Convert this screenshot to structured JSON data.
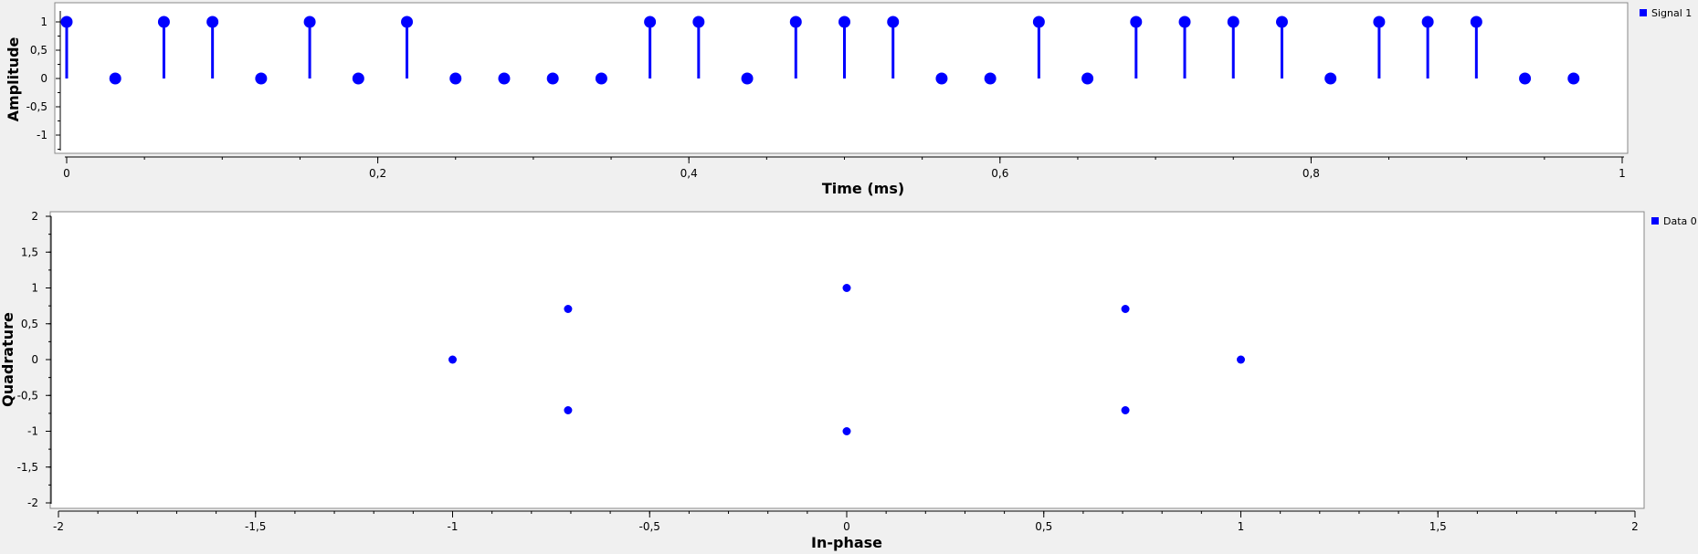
{
  "colors": {
    "series": "#0000ff",
    "background": "#f0f0f0",
    "canvas": "#ffffff",
    "axis": "#000000"
  },
  "chart_data": [
    {
      "type": "stem",
      "title": "",
      "xlabel": "Time (ms)",
      "ylabel": "Amplitude",
      "xlim": [
        0,
        1
      ],
      "ylim": [
        -1.25,
        1.25
      ],
      "xticks": [
        "0",
        "0,2",
        "0,4",
        "0,6",
        "0,8",
        "1"
      ],
      "yticks": [
        "1",
        "0,5",
        "0",
        "-0,5",
        "-1"
      ],
      "legend_position": "top-right",
      "grid": false,
      "series": [
        {
          "name": "Signal 1",
          "x": [
            0,
            0.03125,
            0.0625,
            0.09375,
            0.125,
            0.15625,
            0.1875,
            0.21875,
            0.25,
            0.28125,
            0.3125,
            0.34375,
            0.375,
            0.40625,
            0.4375,
            0.46875,
            0.5,
            0.53125,
            0.5625,
            0.59375,
            0.625,
            0.65625,
            0.6875,
            0.71875,
            0.75,
            0.78125,
            0.8125,
            0.84375,
            0.875,
            0.90625,
            0.9375,
            0.96875
          ],
          "values": [
            1,
            0,
            1,
            1,
            0,
            1,
            0,
            1,
            0,
            0,
            0,
            0,
            1,
            1,
            0,
            1,
            1,
            1,
            0,
            0,
            1,
            0,
            1,
            1,
            1,
            1,
            0,
            1,
            1,
            1,
            0,
            0
          ]
        }
      ]
    },
    {
      "type": "scatter",
      "title": "",
      "xlabel": "In-phase",
      "ylabel": "Quadrature",
      "xlim": [
        -2,
        2
      ],
      "ylim": [
        -2,
        2
      ],
      "xticks": [
        "-2",
        "-1,5",
        "-1",
        "-0,5",
        "0",
        "0,5",
        "1",
        "1,5",
        "2"
      ],
      "yticks": [
        "2",
        "1,5",
        "1",
        "0,5",
        "0",
        "-0,5",
        "-1",
        "-1,5",
        "-2"
      ],
      "legend_position": "top-right",
      "grid": false,
      "series": [
        {
          "name": "Data 0",
          "x": [
            1,
            0.707,
            0,
            -0.707,
            -1,
            -0.707,
            0,
            0.707
          ],
          "y": [
            0,
            0.707,
            1,
            0.707,
            0,
            -0.707,
            -1,
            -0.707
          ]
        }
      ]
    }
  ]
}
